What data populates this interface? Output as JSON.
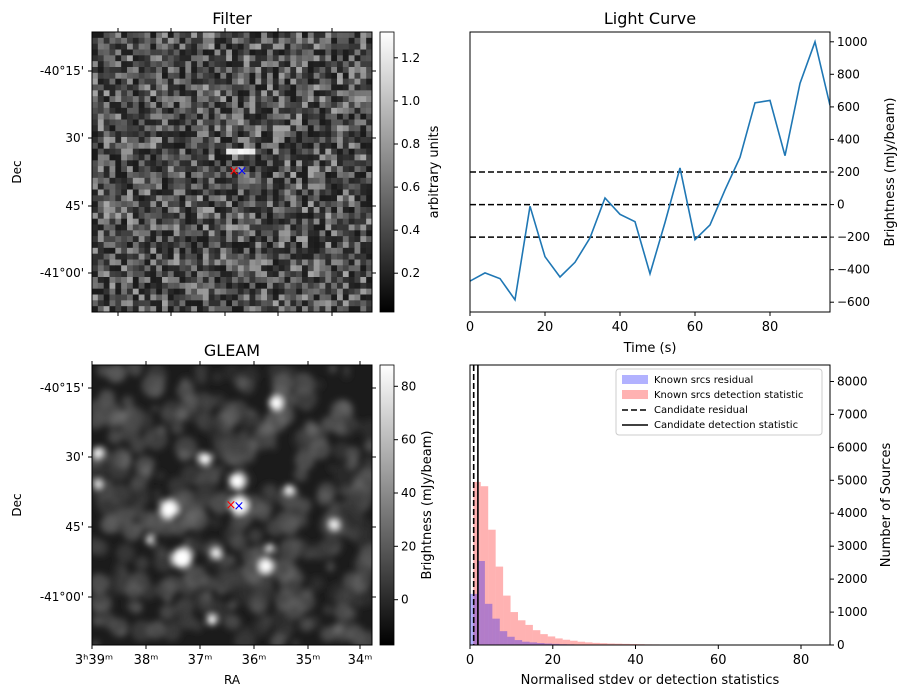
{
  "chart_data": [
    {
      "type": "heatmap",
      "title": "Filter",
      "ylabel": "Dec",
      "xlabel": "",
      "y_ticks": [
        "-40°15'",
        "30'",
        "45'",
        "-41°00'"
      ],
      "colorbar": {
        "label": "arbitrary units",
        "ticks": [
          "0.2",
          "0.4",
          "0.6",
          "0.8",
          "1.0",
          "1.2"
        ],
        "range": [
          0.02,
          1.32
        ]
      },
      "markers": [
        {
          "symbol": "x",
          "color": "#ff0000"
        },
        {
          "symbol": "x",
          "color": "#0000ff"
        }
      ]
    },
    {
      "type": "line",
      "title": "Light Curve",
      "xlabel": "Time (s)",
      "ylabel": "Brightness (mJy/beam)",
      "xlim": [
        0,
        96
      ],
      "ylim": [
        -660,
        1060
      ],
      "x_ticks": [
        0,
        20,
        40,
        60,
        80
      ],
      "y_ticks": [
        -600,
        -400,
        -200,
        0,
        200,
        400,
        600,
        800,
        1000
      ],
      "series": [
        {
          "x": [
            0,
            4,
            8,
            12,
            16,
            20,
            24,
            28,
            32,
            36,
            40,
            44,
            48,
            52,
            56,
            60,
            64,
            68,
            72,
            76,
            80,
            84,
            88,
            92,
            96
          ],
          "y": [
            -470,
            -420,
            -455,
            -585,
            -10,
            -320,
            -445,
            -355,
            -205,
            40,
            -60,
            -105,
            -425,
            -110,
            225,
            -215,
            -125,
            90,
            290,
            625,
            640,
            300,
            745,
            1000,
            610
          ]
        }
      ],
      "hlines": [
        200,
        0,
        -200
      ],
      "line_color": "#1f77b4"
    },
    {
      "type": "heatmap",
      "title": "GLEAM",
      "xlabel": "RA",
      "ylabel": "Dec",
      "x_ticks": [
        "3ʰ39ᵐ",
        "38ᵐ",
        "37ᵐ",
        "36ᵐ",
        "35ᵐ",
        "34ᵐ"
      ],
      "y_ticks": [
        "-40°15'",
        "30'",
        "45'",
        "-41°00'"
      ],
      "colorbar": {
        "label": "Brightness (mJy/beam)",
        "ticks": [
          "0",
          "20",
          "40",
          "60",
          "80"
        ],
        "range": [
          -17,
          88
        ]
      },
      "markers": [
        {
          "symbol": "x",
          "color": "#ff0000"
        },
        {
          "symbol": "x",
          "color": "#0000ff"
        }
      ]
    },
    {
      "type": "bar",
      "subtype": "histogram",
      "xlabel": "Normalised stdev or detection statistics",
      "ylabel": "Number of Sources",
      "xlim": [
        0,
        87
      ],
      "ylim": [
        0,
        8500
      ],
      "x_ticks": [
        0,
        20,
        40,
        60,
        80
      ],
      "y_ticks": [
        0,
        1000,
        2000,
        3000,
        4000,
        5000,
        6000,
        7000,
        8000
      ],
      "bin_width": 1.8,
      "series": [
        {
          "name": "Known srcs residual",
          "color": "#0000ff",
          "bin_start": 0.0,
          "values": [
            1550,
            2550,
            1250,
            800,
            420,
            250,
            150,
            100,
            80,
            60,
            45,
            35,
            25,
            20,
            15,
            10,
            8,
            6,
            5,
            4
          ]
        },
        {
          "name": "Known srcs detection statistic",
          "color": "#ff0000",
          "bin_start": 0.8,
          "values": [
            4950,
            4820,
            3500,
            2380,
            1500,
            1000,
            750,
            610,
            450,
            330,
            260,
            200,
            160,
            130,
            100,
            80,
            65,
            55,
            45,
            40,
            35,
            30,
            25,
            20,
            18,
            15,
            12,
            10,
            9,
            8,
            7,
            6,
            5,
            5,
            4,
            4,
            3,
            3,
            2,
            2,
            2,
            2,
            1,
            1,
            1,
            1,
            1
          ]
        }
      ],
      "vlines": [
        {
          "name": "Candidate residual",
          "x": 0.9,
          "style": "dashed"
        },
        {
          "name": "Candidate detection statistic",
          "x": 1.9,
          "style": "solid"
        }
      ],
      "legend": "top-right"
    }
  ]
}
